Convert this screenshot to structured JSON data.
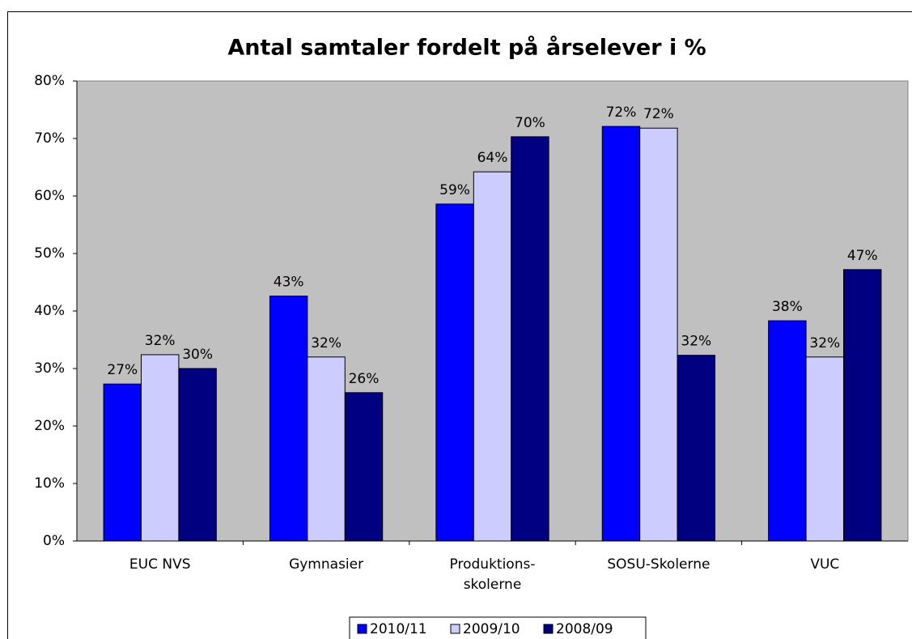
{
  "chart_data": {
    "type": "bar",
    "title": "Antal samtaler fordelt på årselever i %",
    "categories": [
      "EUC NVS",
      "Gymnasier",
      "Produktions-\nskolerne",
      "SOSU-Skolerne",
      "VUC"
    ],
    "series": [
      {
        "name": "2010/11",
        "color": "#0000ff",
        "values": [
          27.3,
          42.6,
          58.6,
          72.1,
          38.3
        ],
        "value_labels": [
          "27%",
          "43%",
          "59%",
          "72%",
          "38%"
        ]
      },
      {
        "name": "2009/10",
        "color": "#ccccff",
        "values": [
          32.4,
          32,
          64.2,
          71.8,
          32
        ],
        "value_labels": [
          "32%",
          "32%",
          "64%",
          "72%",
          "32%"
        ]
      },
      {
        "name": "2008/09",
        "color": "#000080",
        "values": [
          30,
          25.8,
          70.3,
          32.3,
          47.2
        ],
        "value_labels": [
          "30%",
          "26%",
          "70%",
          "32%",
          "47%"
        ]
      }
    ],
    "ylim": [
      0,
      80
    ],
    "yticks": [
      {
        "value": 0,
        "label": "0%"
      },
      {
        "value": 10,
        "label": "10%"
      },
      {
        "value": 20,
        "label": "20%"
      },
      {
        "value": 30,
        "label": "30%"
      },
      {
        "value": 40,
        "label": "40%"
      },
      {
        "value": 50,
        "label": "50%"
      },
      {
        "value": 60,
        "label": "60%"
      },
      {
        "value": 70,
        "label": "70%"
      },
      {
        "value": 80,
        "label": "80%"
      }
    ],
    "plot_background": "#c0c0c0",
    "legend": "bottom"
  }
}
